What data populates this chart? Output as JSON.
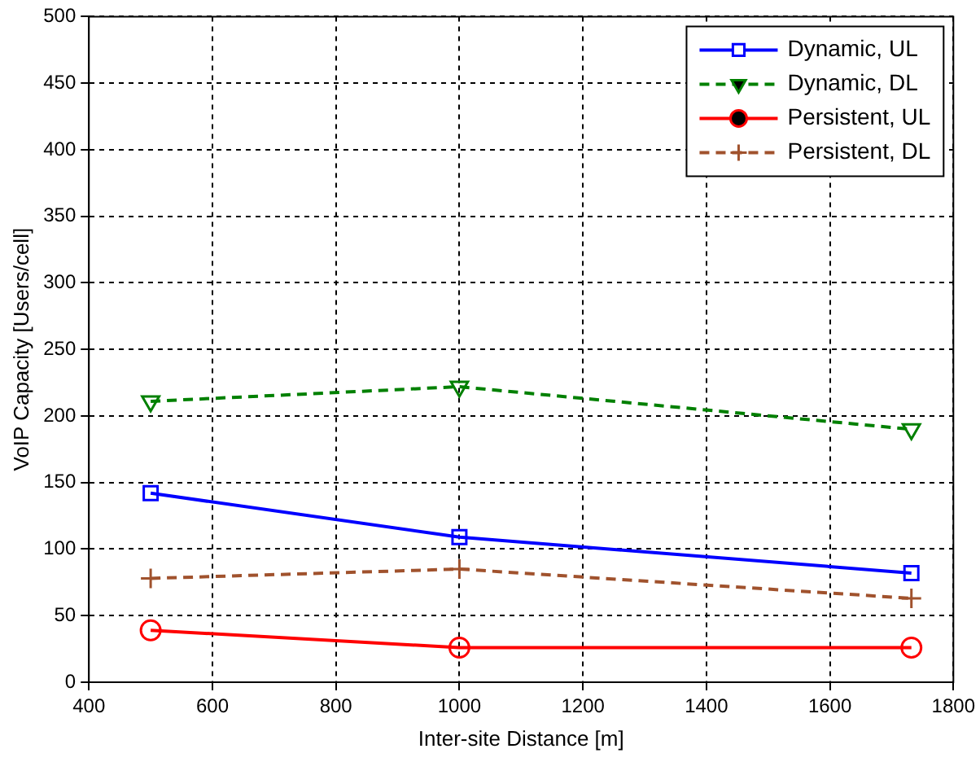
{
  "chart_data": {
    "type": "line",
    "xlabel": "Inter-site Distance [m]",
    "ylabel": "VoIP Capacity [Users/cell]",
    "x": [
      500,
      1000,
      1732
    ],
    "series": [
      {
        "name": "Dynamic, UL",
        "color": "#0000ff",
        "values": [
          142,
          109,
          82
        ],
        "marker": "square",
        "line_style": "solid"
      },
      {
        "name": "Dynamic, DL",
        "color": "#008000",
        "values": [
          211,
          222,
          190
        ],
        "marker": "triangle",
        "line_style": "dashed"
      },
      {
        "name": "Persistent, UL",
        "color": "#ff0000",
        "values": [
          39,
          26,
          26
        ],
        "marker": "circle",
        "line_style": "solid"
      },
      {
        "name": "Persistent, DL",
        "color": "#a0522d",
        "values": [
          78,
          85,
          63
        ],
        "marker": "cross",
        "line_style": "dashed"
      }
    ],
    "xlim": [
      400,
      1800
    ],
    "xticks": [
      400,
      600,
      800,
      1000,
      1200,
      1400,
      1600,
      1800
    ],
    "ylim": [
      0,
      500
    ],
    "yticks": [
      0,
      50,
      100,
      150,
      200,
      250,
      300,
      350,
      400,
      450,
      500
    ],
    "grid": true,
    "legend": "top right"
  }
}
